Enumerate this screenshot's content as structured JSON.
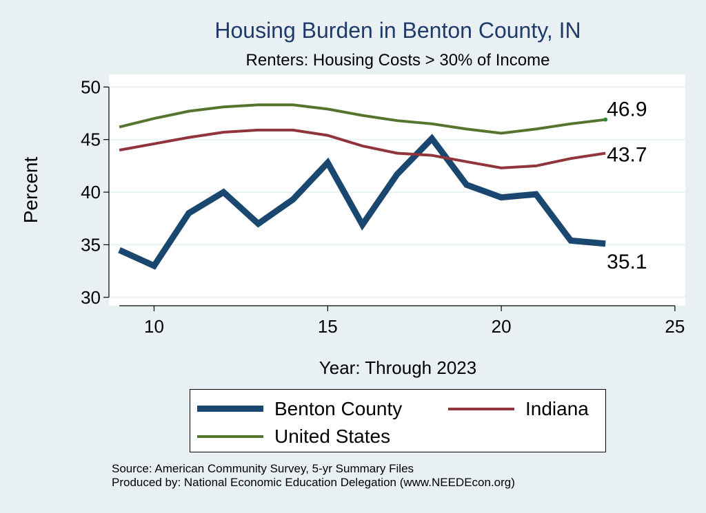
{
  "chart_data": {
    "type": "line",
    "title": "Housing Burden in Benton County, IN",
    "subtitle": "Renters: Housing Costs > 30% of Income",
    "xlabel": "Year: Through 2023",
    "ylabel": "Percent",
    "xlim": [
      8.7,
      25.3
    ],
    "ylim": [
      29.2,
      51.2
    ],
    "x_ticks": [
      10,
      15,
      20,
      25
    ],
    "y_ticks": [
      30,
      35,
      40,
      45,
      50
    ],
    "grid": true,
    "series": [
      {
        "name": "Benton County",
        "color": "#1a476f",
        "x": [
          9,
          10,
          11,
          12,
          13,
          14,
          15,
          16,
          17,
          18,
          19,
          20,
          21,
          22,
          23
        ],
        "values": [
          34.5,
          33.0,
          38.0,
          40.0,
          37.0,
          39.3,
          42.8,
          36.9,
          41.7,
          45.1,
          40.7,
          39.5,
          39.8,
          35.4,
          35.1
        ],
        "end_label": "35.1"
      },
      {
        "name": "Indiana",
        "color": "#90353b",
        "x": [
          9,
          10,
          11,
          12,
          13,
          14,
          15,
          16,
          17,
          18,
          19,
          20,
          21,
          22,
          23
        ],
        "values": [
          44.0,
          44.6,
          45.2,
          45.7,
          45.9,
          45.9,
          45.4,
          44.4,
          43.7,
          43.5,
          42.9,
          42.3,
          42.5,
          43.2,
          43.7
        ],
        "end_label": "43.7"
      },
      {
        "name": "United States",
        "color": "#55752f",
        "x": [
          9,
          10,
          11,
          12,
          13,
          14,
          15,
          16,
          17,
          18,
          19,
          20,
          21,
          22,
          23
        ],
        "values": [
          46.2,
          47.0,
          47.7,
          48.1,
          48.3,
          48.3,
          47.9,
          47.3,
          46.8,
          46.5,
          46.0,
          45.6,
          46.0,
          46.5,
          46.9
        ],
        "end_label": "46.9"
      }
    ],
    "legend": {
      "placement": "bottom-center"
    }
  },
  "source_line": "Source: American Community Survey, 5-yr Summary Files",
  "produced_line": "Produced by: National Economic Education Delegation (www.NEEDEcon.org)"
}
